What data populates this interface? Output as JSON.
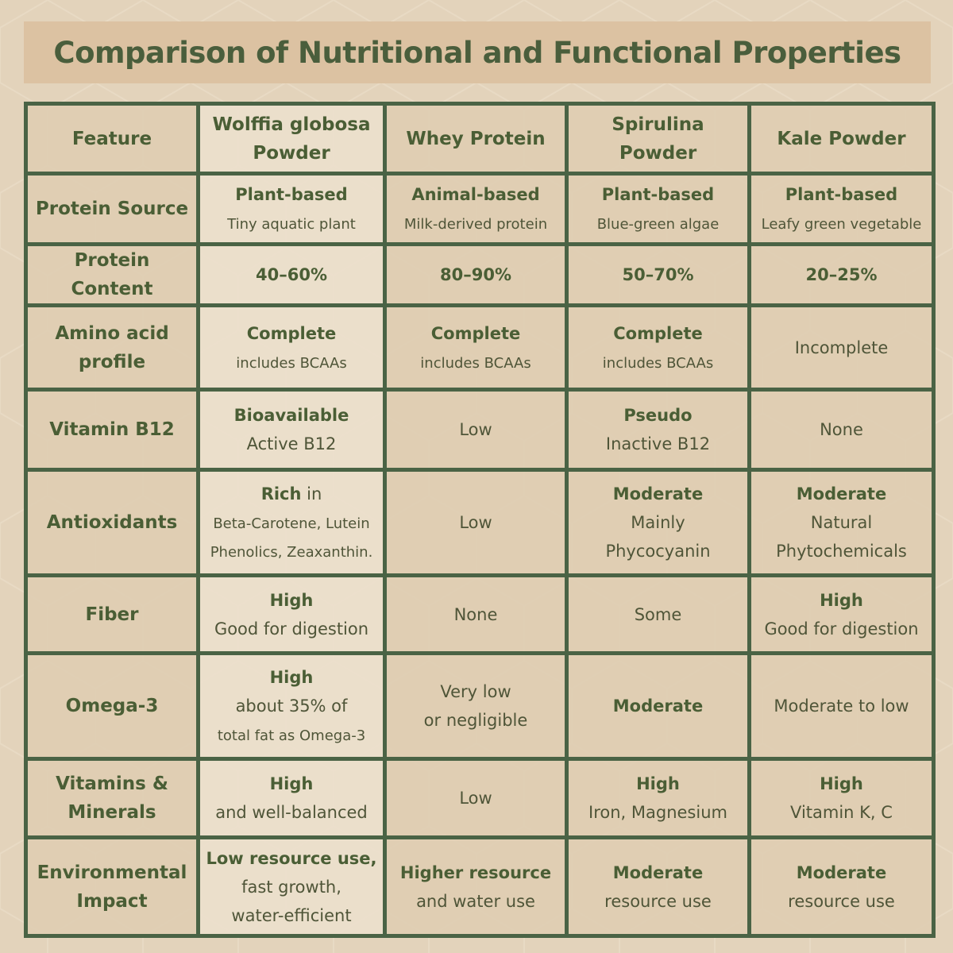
{
  "title": "Comparison of Nutritional and Functional Properties",
  "colors": {
    "border": "#4a6345",
    "text_bold": "#4a5e35",
    "text": "#4f5538",
    "background": "#e3d3bb",
    "banner": "#dcc2a2"
  },
  "headers": [
    "Feature",
    "Wolffia globosa Powder",
    "Whey Protein",
    "Spirulina Powder",
    "Kale Powder"
  ],
  "rows": [
    {
      "feature": "Protein Source",
      "cells": [
        [
          [
            {
              "t": "Plant-based",
              "b": true
            }
          ],
          [
            {
              "t": "Tiny aquatic plant",
              "s": true
            }
          ]
        ],
        [
          [
            {
              "t": "Animal-based",
              "b": true
            }
          ],
          [
            {
              "t": "Milk-derived protein",
              "s": true
            }
          ]
        ],
        [
          [
            {
              "t": "Plant-based",
              "b": true
            }
          ],
          [
            {
              "t": "Blue-green algae",
              "s": true
            }
          ]
        ],
        [
          [
            {
              "t": "Plant-based",
              "b": true
            }
          ],
          [
            {
              "t": "Leafy green vegetable",
              "s": true
            }
          ]
        ]
      ]
    },
    {
      "feature": "Protein Content",
      "cells": [
        [
          [
            {
              "t": "40–60%",
              "b": true
            }
          ]
        ],
        [
          [
            {
              "t": "80–90%",
              "b": true
            }
          ]
        ],
        [
          [
            {
              "t": "50–70%",
              "b": true
            }
          ]
        ],
        [
          [
            {
              "t": "20–25%",
              "b": true
            }
          ]
        ]
      ]
    },
    {
      "feature": "Amino acid profile",
      "cells": [
        [
          [
            {
              "t": "Complete",
              "b": true
            }
          ],
          [
            {
              "t": "includes BCAAs",
              "s": true
            }
          ]
        ],
        [
          [
            {
              "t": "Complete",
              "b": true
            }
          ],
          [
            {
              "t": "includes BCAAs",
              "s": true
            }
          ]
        ],
        [
          [
            {
              "t": "Complete",
              "b": true
            }
          ],
          [
            {
              "t": "includes BCAAs",
              "s": true
            }
          ]
        ],
        [
          [
            {
              "t": "Incomplete"
            }
          ]
        ]
      ]
    },
    {
      "feature": "Vitamin B12",
      "cells": [
        [
          [
            {
              "t": "Bioavailable",
              "b": true
            }
          ],
          [
            {
              "t": "Active B12"
            }
          ]
        ],
        [
          [
            {
              "t": "Low"
            }
          ]
        ],
        [
          [
            {
              "t": "Pseudo",
              "b": true
            }
          ],
          [
            {
              "t": "Inactive B12"
            }
          ]
        ],
        [
          [
            {
              "t": "None"
            }
          ]
        ]
      ]
    },
    {
      "feature": "Antioxidants",
      "cells": [
        [
          [
            {
              "t": "Rich",
              "b": true
            },
            {
              "t": " in"
            }
          ],
          [
            {
              "t": "Beta-Carotene, Lutein",
              "s": true
            }
          ],
          [
            {
              "t": "Phenolics, Zeaxanthin.",
              "s": true
            }
          ]
        ],
        [
          [
            {
              "t": "Low"
            }
          ]
        ],
        [
          [
            {
              "t": "Moderate",
              "b": true
            }
          ],
          [
            {
              "t": "Mainly"
            }
          ],
          [
            {
              "t": "Phycocyanin"
            }
          ]
        ],
        [
          [
            {
              "t": "Moderate",
              "b": true
            }
          ],
          [
            {
              "t": "Natural"
            }
          ],
          [
            {
              "t": "Phytochemicals"
            }
          ]
        ]
      ]
    },
    {
      "feature": "Fiber",
      "cells": [
        [
          [
            {
              "t": "High",
              "b": true
            }
          ],
          [
            {
              "t": "Good for digestion"
            }
          ]
        ],
        [
          [
            {
              "t": "None"
            }
          ]
        ],
        [
          [
            {
              "t": "Some"
            }
          ]
        ],
        [
          [
            {
              "t": "High",
              "b": true
            }
          ],
          [
            {
              "t": "Good for digestion"
            }
          ]
        ]
      ]
    },
    {
      "feature": "Omega-3",
      "cells": [
        [
          [
            {
              "t": "High",
              "b": true
            }
          ],
          [
            {
              "t": "about 35% of"
            }
          ],
          [
            {
              "t": "total fat as Omega-3",
              "s": true
            }
          ]
        ],
        [
          [
            {
              "t": "Very low"
            }
          ],
          [
            {
              "t": "or negligible"
            }
          ]
        ],
        [
          [
            {
              "t": "Moderate",
              "b": true
            }
          ]
        ],
        [
          [
            {
              "t": "Moderate to low"
            }
          ]
        ]
      ]
    },
    {
      "feature": "Vitamins & Minerals",
      "cells": [
        [
          [
            {
              "t": "High",
              "b": true
            }
          ],
          [
            {
              "t": "and well-balanced"
            }
          ]
        ],
        [
          [
            {
              "t": "Low"
            }
          ]
        ],
        [
          [
            {
              "t": "High",
              "b": true
            }
          ],
          [
            {
              "t": "Iron, Magnesium"
            }
          ]
        ],
        [
          [
            {
              "t": "High",
              "b": true
            }
          ],
          [
            {
              "t": "Vitamin K, C"
            }
          ]
        ]
      ]
    },
    {
      "feature": "Environmental Impact",
      "cells": [
        [
          [
            {
              "t": "Low resource use,",
              "b": true
            }
          ],
          [
            {
              "t": "fast growth,"
            }
          ],
          [
            {
              "t": "water-efficient"
            }
          ]
        ],
        [
          [
            {
              "t": "Higher resource",
              "b": true
            }
          ],
          [
            {
              "t": "and water use"
            }
          ]
        ],
        [
          [
            {
              "t": "Moderate",
              "b": true
            }
          ],
          [
            {
              "t": "resource use"
            }
          ]
        ],
        [
          [
            {
              "t": "Moderate",
              "b": true
            }
          ],
          [
            {
              "t": "resource use"
            }
          ]
        ]
      ]
    }
  ]
}
